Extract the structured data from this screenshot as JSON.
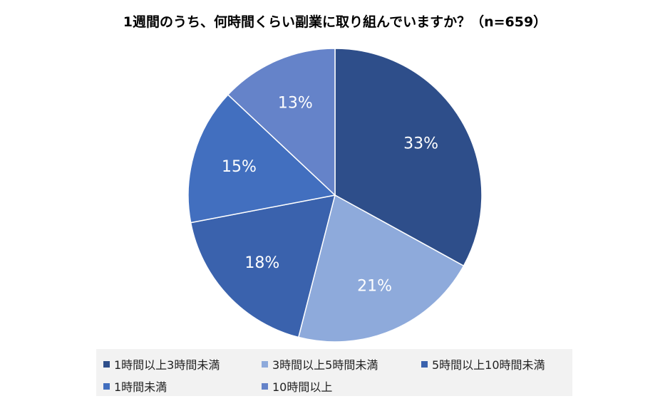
{
  "title": "1週間のうち、何時間くらい副業に取り組んでいますか？（n=659）",
  "chart_data": {
    "type": "pie",
    "categories": [
      "1時間以上3時間未満",
      "3時間以上5時間未満",
      "5時間以上10時間未満",
      "1時間未満",
      "10時間以上"
    ],
    "values": [
      33,
      21,
      18,
      15,
      13
    ],
    "labels": [
      "33%",
      "21%",
      "18%",
      "15%",
      "13%"
    ],
    "colors": [
      "#2e4e8a",
      "#8eaadb",
      "#3a62ad",
      "#426fbf",
      "#6583c9"
    ],
    "legend_position": "bottom"
  }
}
